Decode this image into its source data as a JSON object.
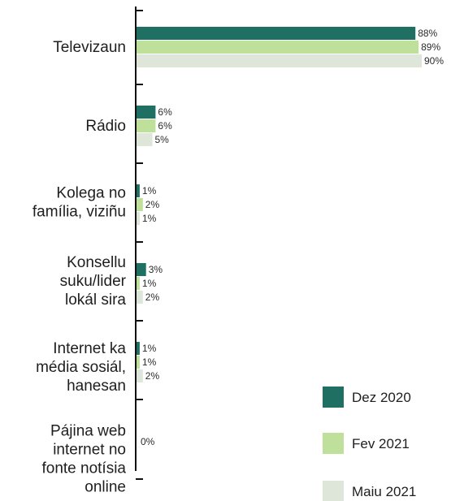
{
  "chart_data": {
    "type": "bar",
    "orientation": "horizontal",
    "categories": [
      "Televizaun",
      "Rádio",
      "Kolega no família, viziñu",
      "Konsellu suku/lider lokál sira",
      "Internet ka média sosiál, hanesan",
      "Pájina web internet no fonte notísia online"
    ],
    "category_lines": [
      [
        "Televizaun"
      ],
      [
        "Rádio"
      ],
      [
        "Kolega no",
        "família, viziñu"
      ],
      [
        "Konsellu",
        "suku/lider",
        "lokál sira"
      ],
      [
        "Internet ka",
        "média sosiál,",
        "hanesan"
      ],
      [
        "Pájina web",
        "internet no",
        "fonte notísia",
        "online"
      ]
    ],
    "series": [
      {
        "name": "Dez 2020",
        "color": "#1f6f63",
        "values": [
          88,
          6,
          1,
          3,
          1,
          0
        ]
      },
      {
        "name": "Fev 2021",
        "color": "#bfe09a",
        "values": [
          89,
          6,
          2,
          1,
          1,
          0
        ]
      },
      {
        "name": "Maiu 2021",
        "color": "#dde6d8",
        "values": [
          90,
          5,
          1,
          2,
          2,
          0
        ]
      }
    ],
    "value_labels": [
      [
        "88%",
        "89%",
        "90%"
      ],
      [
        "6%",
        "6%",
        "5%"
      ],
      [
        "1%",
        "2%",
        "1%"
      ],
      [
        "3%",
        "1%",
        "2%"
      ],
      [
        "1%",
        "1%",
        "2%"
      ],
      [
        "0%"
      ]
    ],
    "xlim": [
      0,
      100
    ],
    "unit": "%",
    "legend_position": "bottom-right",
    "grid": false
  }
}
